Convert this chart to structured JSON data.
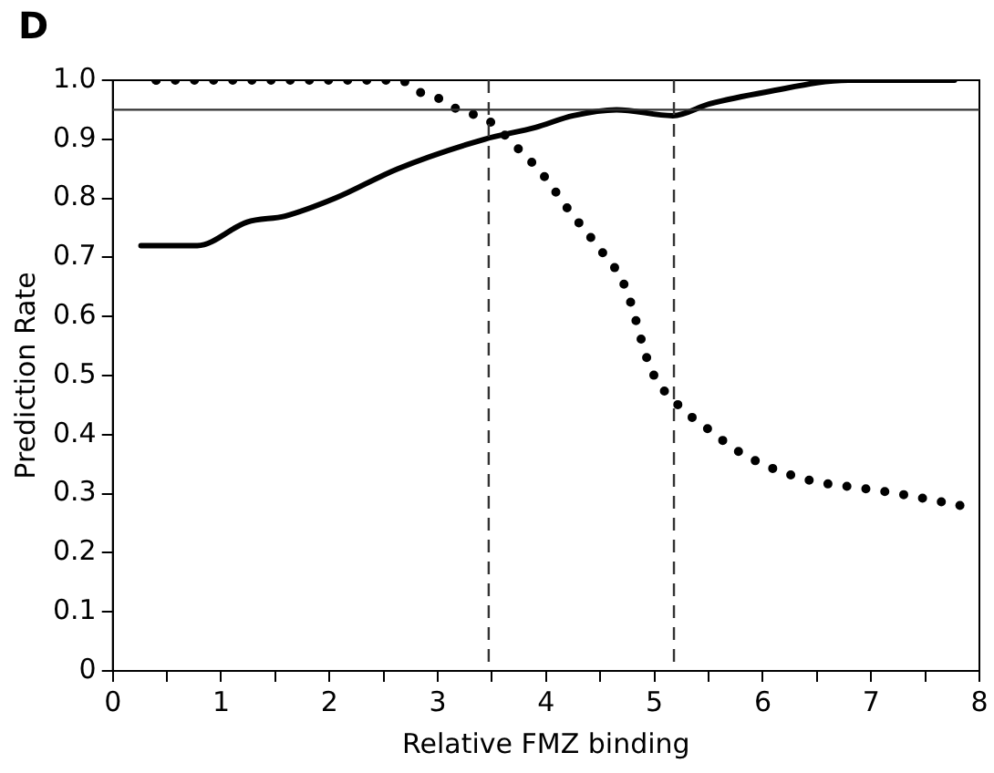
{
  "chart_data": {
    "type": "line",
    "annotations": [
      "D"
    ],
    "xlabel": "Relative FMZ binding",
    "ylabel": "Prediction Rate",
    "xlim": [
      0,
      8
    ],
    "xticks": [
      0,
      {
        "value": 0.5,
        "label": null
      },
      1,
      {
        "value": 1.5,
        "label": null
      },
      2,
      {
        "value": 2.5,
        "label": null
      },
      3,
      {
        "value": 3.5,
        "label": null
      },
      4,
      {
        "value": 4.5,
        "label": null
      },
      5,
      {
        "value": 5.5,
        "label": null
      },
      6,
      {
        "value": 6.5,
        "label": null
      },
      7,
      {
        "value": 7.5,
        "label": null
      },
      8
    ],
    "ylim": [
      0,
      1
    ],
    "yticks": [
      0,
      0.1,
      0.2,
      0.3,
      0.4,
      0.5,
      0.6,
      0.7,
      0.8,
      0.9,
      {
        "value": 1,
        "label": "1.0"
      }
    ],
    "grid": false,
    "marker": "none",
    "legend": false,
    "series": [
      {
        "color": "#000000",
        "line_style": "solid",
        "x": [
          0.26,
          0.61,
          0.78,
          1.24,
          1.59,
          2.05,
          2.63,
          3.43,
          3.9,
          4.25,
          4.65,
          5.17,
          5.51,
          6.03,
          6.79,
          7.77
        ],
        "values": [
          0.72,
          0.72,
          0.72,
          0.76,
          0.77,
          0.8,
          0.85,
          0.9,
          0.92,
          0.94,
          0.95,
          0.94,
          0.96,
          0.98,
          1.0,
          1.0
        ]
      },
      {
        "color": "#000000",
        "line_style": "dotted",
        "x": [
          0.4,
          2.65,
          2.83,
          3.0,
          3.19,
          3.36,
          3.48,
          3.71,
          3.97,
          4.21,
          4.47,
          4.73,
          4.97,
          5.22,
          5.49,
          5.79,
          6.13,
          6.5,
          6.88,
          7.25,
          7.82
        ],
        "values": [
          1.0,
          1.0,
          0.98,
          0.97,
          0.95,
          0.94,
          0.93,
          0.89,
          0.84,
          0.78,
          0.72,
          0.65,
          0.51,
          0.45,
          0.41,
          0.37,
          0.34,
          0.32,
          0.31,
          0.3,
          0.28
        ]
      }
    ],
    "ref_lines": [
      {
        "axis": "y",
        "value": 0.95,
        "line_style": "solid"
      },
      {
        "axis": "x",
        "value": 3.47,
        "line_style": "dashed"
      },
      {
        "axis": "x",
        "value": 5.18,
        "line_style": "dashed"
      }
    ]
  }
}
